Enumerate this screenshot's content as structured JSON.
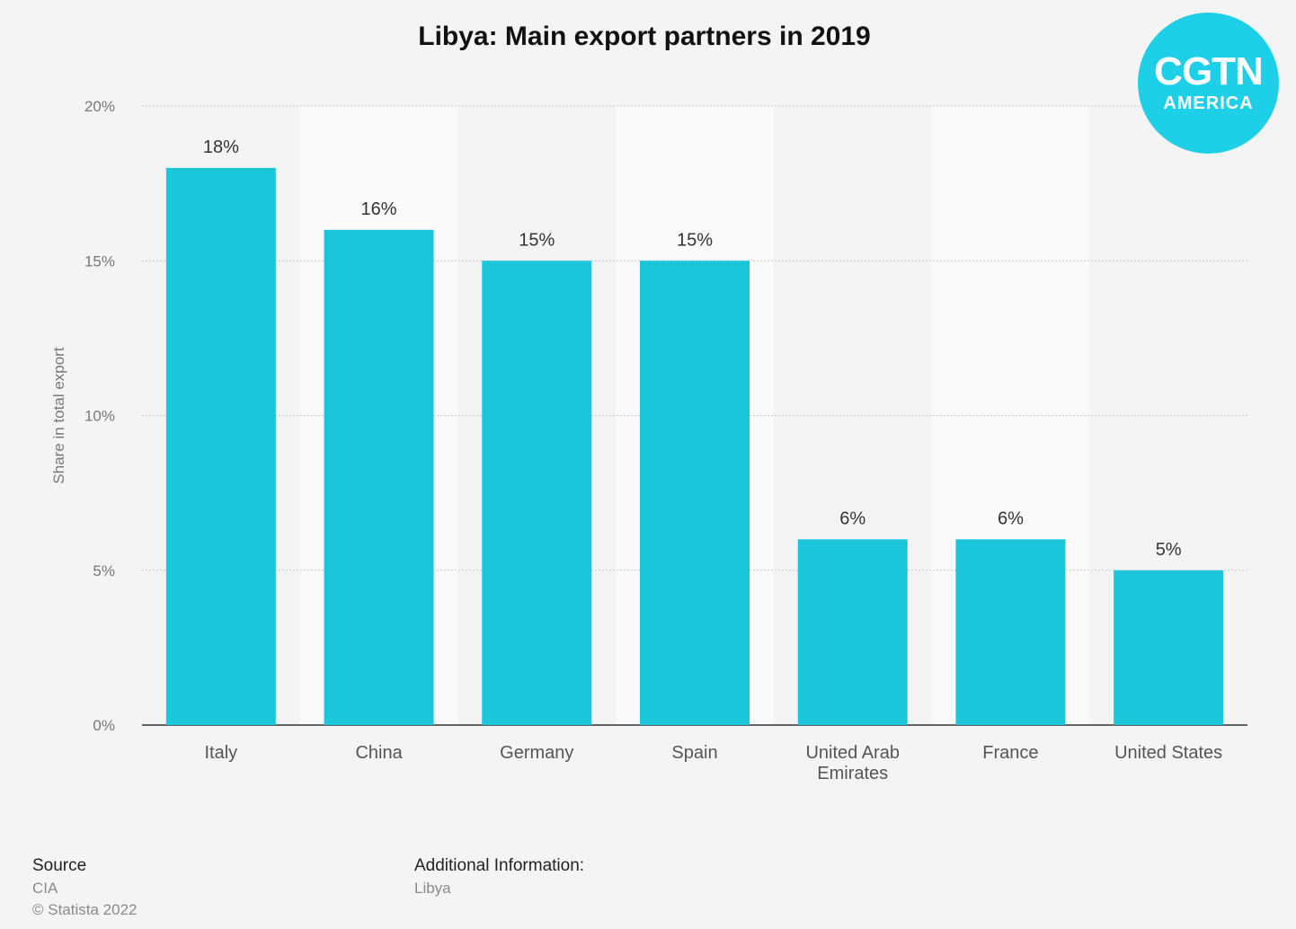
{
  "chart_data": {
    "type": "bar",
    "title": "Libya: Main export partners in 2019",
    "ylabel": "Share in total export",
    "xlabel": "",
    "categories": [
      "Italy",
      "China",
      "Germany",
      "Spain",
      "United Arab Emirates",
      "France",
      "United States"
    ],
    "category_lines": [
      [
        "Italy"
      ],
      [
        "China"
      ],
      [
        "Germany"
      ],
      [
        "Spain"
      ],
      [
        "United Arab",
        "Emirates"
      ],
      [
        "France"
      ],
      [
        "United States"
      ]
    ],
    "values": [
      18,
      16,
      15,
      15,
      6,
      6,
      5
    ],
    "value_labels": [
      "18%",
      "16%",
      "15%",
      "15%",
      "6%",
      "6%",
      "5%"
    ],
    "ylim": [
      0,
      20
    ],
    "yticks": [
      0,
      5,
      10,
      15,
      20
    ],
    "ytick_labels": [
      "0%",
      "5%",
      "10%",
      "15%",
      "20%"
    ],
    "grid": true,
    "bar_color": "#1bc5da"
  },
  "logo": {
    "main": "CGTN",
    "sub": "AMERICA"
  },
  "footer": {
    "source_heading": "Source",
    "source_name": "CIA",
    "copyright": "© Statista 2022",
    "info_heading": "Additional Information:",
    "info_text": "Libya"
  }
}
